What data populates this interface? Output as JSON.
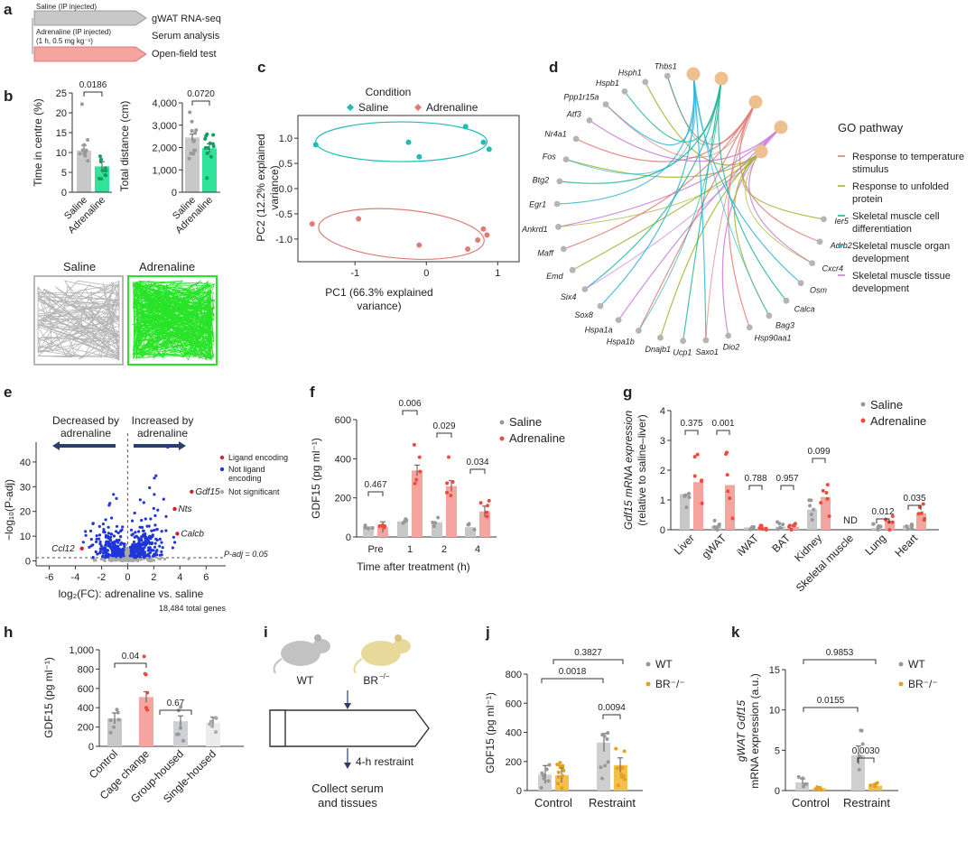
{
  "panel_letters": [
    "a",
    "b",
    "c",
    "d",
    "e",
    "f",
    "g",
    "h",
    "i",
    "j",
    "k"
  ],
  "colors": {
    "saline": "#c8c8c8",
    "adrenaline_b": "#2fe39a",
    "adrenaline": "#f04a3c",
    "adrenaline_fill": "#f4a5a0",
    "pca_saline": "#1fbcb5",
    "pca_adrenaline": "#e07b78",
    "wt": "#cfcfcf",
    "br": "#f4bf4a",
    "volcano_blue": "#2035d8",
    "volcano_red": "#d51f2f",
    "volcano_grey": "#a8a8a8",
    "track_saline": "#b5b5b5",
    "track_adrenaline": "#29e328"
  },
  "panel_a": {
    "arrow1": "Saline (IP injected)",
    "arrow2_line1": "Adrenaline (IP injected)",
    "arrow2_line2": "(1 h, 0.5 mg kg⁻¹)",
    "out1": "gWAT RNA-seq",
    "out2": "Serum analysis",
    "out3": "Open-field test"
  },
  "panel_b": {
    "track_saline": "Saline",
    "track_adrenaline": "Adrenaline"
  },
  "panel_d": {
    "legend_title": "GO pathway",
    "pathways": [
      {
        "l1": "Response to temperature",
        "l2": "stimulus",
        "color": "#e07b78"
      },
      {
        "l1": "Response to unfolded",
        "l2": "protein",
        "color": "#9db52f"
      },
      {
        "l1": "Skeletal muscle cell",
        "l2": "differentiation",
        "color": "#23b59b"
      },
      {
        "l1": "Skeletal muscle organ",
        "l2": "development",
        "color": "#2db5d8"
      },
      {
        "l1": "Skeletal muscle tissue",
        "l2": "development",
        "color": "#c97ad8"
      }
    ],
    "genes": [
      "Thbs1",
      "Hsph1",
      "Hspb1",
      "Ppp1r15a",
      "Atf3",
      "Nr4a1",
      "Fos",
      "Btg2",
      "Egr1",
      "Ankrd1",
      "Maff",
      "Emd",
      "Six4",
      "Sox8",
      "Hspa1a",
      "Hspa1b",
      "Dnajb1",
      "Ucp1",
      "Saxo1",
      "Dio2",
      "Hsp90aa1",
      "Bag3",
      "Calca",
      "Osm",
      "Cxcr4",
      "Adrb2",
      "Ier5"
    ]
  },
  "panel_e": {
    "arrow_left_l1": "Decreased by",
    "arrow_left_l2": "adrenaline",
    "arrow_right_l1": "Increased by",
    "arrow_right_l2": "adrenaline",
    "legend": [
      "Ligand encoding",
      "Not ligand",
      "encoding",
      "Not significant"
    ],
    "padj_label": "P-adj = 0.05",
    "note": "18,484 total genes"
  },
  "panel_i": {
    "wt": "WT",
    "br": "BR",
    "br_sup": "−/−",
    "restraint": "4-h restraint",
    "collect_l1": "Collect serum",
    "collect_l2": "and tissues"
  },
  "chart_data": [
    {
      "id": "b1",
      "type": "bar",
      "ylabel": "Time in centre (%)",
      "categories": [
        "Saline",
        "Adrenaline"
      ],
      "values": [
        10.5,
        6.5
      ],
      "errors": [
        1.3,
        1.2
      ],
      "ylim": [
        0,
        25
      ],
      "yticks": [
        "0",
        "5",
        "10",
        "15",
        "20",
        "25"
      ],
      "pvalue": "0.0186"
    },
    {
      "id": "b2",
      "type": "bar",
      "ylabel": "Total distance (cm)",
      "categories": [
        "Saline",
        "Adrenaline"
      ],
      "values": [
        2450,
        1970
      ],
      "errors": [
        150,
        200
      ],
      "ylim": [
        0,
        4000
      ],
      "yticks": [
        "0",
        "1,000",
        "2,000",
        "3,000",
        "4,000"
      ],
      "pvalue": "0.0720"
    },
    {
      "id": "c",
      "type": "scatter",
      "legend_title": "Condition",
      "xlabel_l1": "PC1 (66.3% explained",
      "xlabel_l2": "variance)",
      "ylabel_l1": "PC2 (12.2% explained",
      "ylabel_l2": "variance)",
      "xlim": [
        -1.8,
        1.3
      ],
      "ylim": [
        -1.45,
        1.45
      ],
      "xticks": [
        -1,
        0,
        1
      ],
      "yticks": [
        1.0,
        0.5,
        0.0,
        -0.5,
        -1.0
      ],
      "series": [
        {
          "name": "Saline",
          "x": [
            -1.55,
            -0.25,
            -0.1,
            0.55,
            0.8,
            0.88
          ],
          "y": [
            0.87,
            0.92,
            0.63,
            1.23,
            0.92,
            0.78
          ]
        },
        {
          "name": "Adrenaline",
          "x": [
            -1.6,
            -0.95,
            -0.1,
            0.58,
            0.72,
            0.8,
            0.85
          ],
          "y": [
            -0.7,
            -0.6,
            -1.12,
            -1.2,
            -1.02,
            -0.8,
            -0.92
          ]
        }
      ]
    },
    {
      "id": "e",
      "type": "scatter",
      "xlabel": "log₂(FC): adrenaline vs. saline",
      "ylabel": "−log₁₀(P-adj)",
      "xlim": [
        -7,
        7.5
      ],
      "ylim": [
        -2,
        48
      ],
      "xticks": [
        -6,
        -4,
        -2,
        0,
        2,
        4,
        6
      ],
      "yticks": [
        0,
        10,
        20,
        30,
        40
      ],
      "labeled_genes": [
        {
          "name": "Gdf15",
          "x": 4.9,
          "y": 28
        },
        {
          "name": "Nts",
          "x": 3.6,
          "y": 21
        },
        {
          "name": "Calcb",
          "x": 3.8,
          "y": 11
        },
        {
          "name": "Ccl12",
          "x": -3.5,
          "y": 5
        }
      ]
    },
    {
      "id": "f",
      "type": "bar",
      "xlabel": "Time after treatment (h)",
      "ylabel": "GDF15 (pg ml⁻¹)",
      "categories": [
        "Pre",
        "1",
        "2",
        "4"
      ],
      "ylim": [
        0,
        600
      ],
      "yticks": [
        "0",
        "200",
        "400",
        "600"
      ],
      "series": [
        {
          "name": "Saline",
          "values": [
            55,
            80,
            75,
            50
          ]
        },
        {
          "name": "Adrenaline",
          "values": [
            50,
            340,
            260,
            130
          ]
        }
      ],
      "pvalues": [
        "0.467",
        "0.006",
        "0.029",
        "0.034"
      ]
    },
    {
      "id": "g",
      "type": "bar",
      "ylabel_l1": "Gdf15 mRNA expression",
      "ylabel_l2": "(relative to saline–liver)",
      "categories": [
        "Liver",
        "gWAT",
        "iWAT",
        "BAT",
        "Kidney",
        "Skeletal muscle",
        "Lung",
        "Heart"
      ],
      "ylim": [
        0,
        4
      ],
      "yticks": [
        "0",
        "1",
        "2",
        "3",
        "4"
      ],
      "series": [
        {
          "name": "Saline",
          "values": [
            1.2,
            0.12,
            0.08,
            0.1,
            0.68,
            0,
            0.06,
            0.15
          ]
        },
        {
          "name": "Adrenaline",
          "values": [
            1.6,
            1.5,
            0.1,
            0.1,
            1.1,
            0,
            0.3,
            0.55
          ]
        }
      ],
      "pvalues": [
        "0.375",
        "0.001",
        "0.788",
        "0.957",
        "0.099",
        "",
        "0.012",
        "0.035"
      ],
      "nd_label": "ND"
    },
    {
      "id": "h",
      "type": "bar",
      "ylabel": "GDF15 (pg ml⁻¹)",
      "categories": [
        "Control",
        "Cage change",
        "Group-housed",
        "Single-housed"
      ],
      "values": [
        290,
        510,
        260,
        245
      ],
      "ylim": [
        0,
        1000
      ],
      "yticks": [
        "0",
        "200",
        "400",
        "600",
        "800",
        "1,000"
      ],
      "pvalues": [
        "0.04",
        "0.67"
      ]
    },
    {
      "id": "j",
      "type": "bar",
      "ylabel": "GDF15 (pg ml⁻¹)",
      "categories": [
        "Control",
        "Restraint"
      ],
      "ylim": [
        0,
        800
      ],
      "yticks": [
        "0",
        "200",
        "400",
        "600",
        "800"
      ],
      "series": [
        {
          "name": "WT",
          "values": [
            110,
            330
          ]
        },
        {
          "name": "BR⁻/⁻",
          "values": [
            105,
            175
          ]
        }
      ],
      "pvalues": [
        "0.3827",
        "0.0018",
        "0.0094"
      ]
    },
    {
      "id": "k",
      "type": "bar",
      "ylabel_l1": "gWAT Gdf15",
      "ylabel_l2": "mRNA expression (a.u.)",
      "categories": [
        "Control",
        "Restraint"
      ],
      "ylim": [
        0,
        15
      ],
      "yticks": [
        "0",
        "5",
        "10",
        "15"
      ],
      "series": [
        {
          "name": "WT",
          "values": [
            1.0,
            4.4
          ]
        },
        {
          "name": "BR⁻/⁻",
          "values": [
            0.3,
            0.6
          ]
        }
      ],
      "pvalues": [
        "0.9853",
        "0.0155",
        "0.0030"
      ]
    }
  ]
}
